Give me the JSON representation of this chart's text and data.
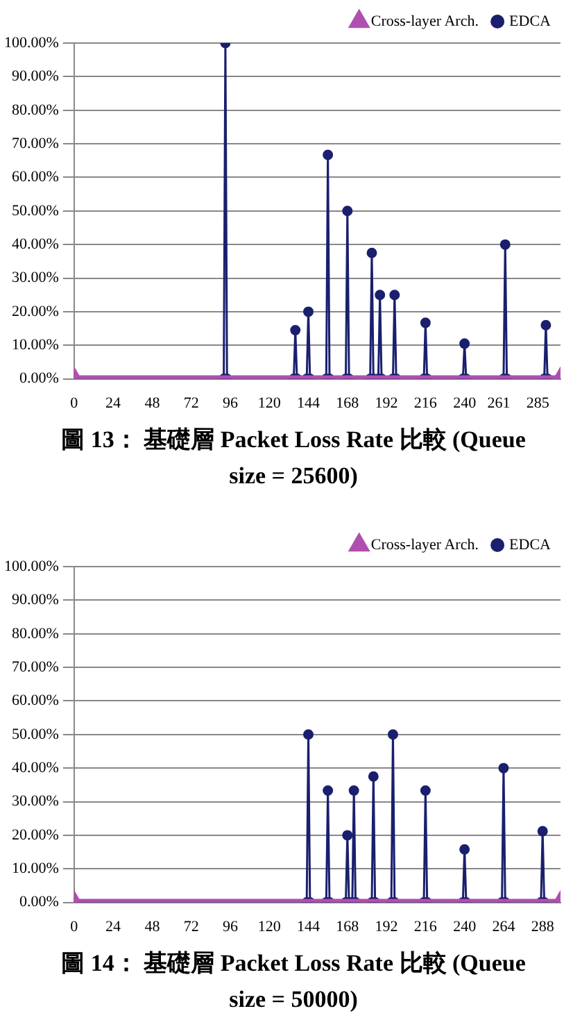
{
  "chart_data": [
    {
      "type": "line",
      "title": "圖 13： 基礎層 Packet Loss Rate 比較 (Queue size = 25600)",
      "xlim": [
        0,
        299
      ],
      "xticks": [
        0,
        24,
        48,
        72,
        96,
        120,
        144,
        168,
        192,
        216,
        240,
        261,
        285
      ],
      "ylim": [
        0,
        100
      ],
      "yticks": [
        {
          "value": 0,
          "label": "0.00%"
        },
        {
          "value": 10,
          "label": "10.00%"
        },
        {
          "value": 20,
          "label": "20.00%"
        },
        {
          "value": 30,
          "label": "30.00%"
        },
        {
          "value": 40,
          "label": "40.00%"
        },
        {
          "value": 50,
          "label": "50.00%"
        },
        {
          "value": 60,
          "label": "60.00%"
        },
        {
          "value": 70,
          "label": "70.00%"
        },
        {
          "value": 80,
          "label": "80.00%"
        },
        {
          "value": 90,
          "label": "90.00%"
        },
        {
          "value": 100,
          "label": "100.00%"
        }
      ],
      "grid": "y",
      "legend": "top right",
      "series": [
        {
          "name": "EDCA",
          "color": "#1a1f6e",
          "marker": "circle",
          "x": [
            0,
            92,
            93,
            94,
            135,
            136,
            137,
            143,
            144,
            145,
            155,
            156,
            157,
            167,
            168,
            169,
            182,
            183,
            184,
            187,
            188,
            189,
            196,
            197,
            198,
            215,
            216,
            217,
            239,
            240,
            241,
            264,
            265,
            266,
            289,
            290,
            291,
            299
          ],
          "values": [
            0,
            0,
            100,
            0,
            0,
            14.5,
            0,
            0,
            20,
            0,
            0,
            66.7,
            0,
            0,
            50,
            0,
            0,
            37.5,
            0,
            0,
            25,
            0,
            0,
            25,
            0,
            0,
            16.7,
            0,
            0,
            10.5,
            0,
            0,
            40,
            0,
            0,
            16,
            0,
            0
          ]
        },
        {
          "name": "Cross-layer Arch.",
          "color": "#b04fb0",
          "marker": "triangle",
          "x": [
            0,
            299
          ],
          "values": [
            0,
            0
          ]
        }
      ]
    },
    {
      "type": "line",
      "title": "圖 14： 基礎層 Packet Loss Rate 比較 (Queue size = 50000)",
      "xlim": [
        0,
        299
      ],
      "xticks": [
        0,
        24,
        48,
        72,
        96,
        120,
        144,
        168,
        192,
        216,
        240,
        264,
        288
      ],
      "ylim": [
        0,
        100
      ],
      "yticks": [
        {
          "value": 0,
          "label": "0.00%"
        },
        {
          "value": 10,
          "label": "10.00%"
        },
        {
          "value": 20,
          "label": "20.00%"
        },
        {
          "value": 30,
          "label": "30.00%"
        },
        {
          "value": 40,
          "label": "40.00%"
        },
        {
          "value": 50,
          "label": "50.00%"
        },
        {
          "value": 60,
          "label": "60.00%"
        },
        {
          "value": 70,
          "label": "70.00%"
        },
        {
          "value": 80,
          "label": "80.00%"
        },
        {
          "value": 90,
          "label": "90.00%"
        },
        {
          "value": 100,
          "label": "100.00%"
        }
      ],
      "grid": "y",
      "legend": "top right",
      "series": [
        {
          "name": "EDCA",
          "color": "#1a1f6e",
          "marker": "circle",
          "x": [
            0,
            143,
            144,
            145,
            155,
            156,
            157,
            167,
            168,
            169,
            171,
            172,
            173,
            183,
            184,
            185,
            195,
            196,
            197,
            215,
            216,
            217,
            239,
            240,
            241,
            263,
            264,
            265,
            287,
            288,
            289,
            299
          ],
          "values": [
            0,
            0,
            50,
            0,
            0,
            33.3,
            0,
            0,
            20,
            0,
            0,
            33.3,
            0,
            0,
            37.5,
            0,
            0,
            50,
            0,
            0,
            33.3,
            0,
            0,
            15.8,
            0,
            0,
            40,
            0,
            0,
            21.2,
            0,
            0
          ]
        },
        {
          "name": "Cross-layer Arch.",
          "color": "#b04fb0",
          "marker": "triangle",
          "x": [
            0,
            299
          ],
          "values": [
            0,
            0
          ]
        }
      ]
    }
  ]
}
